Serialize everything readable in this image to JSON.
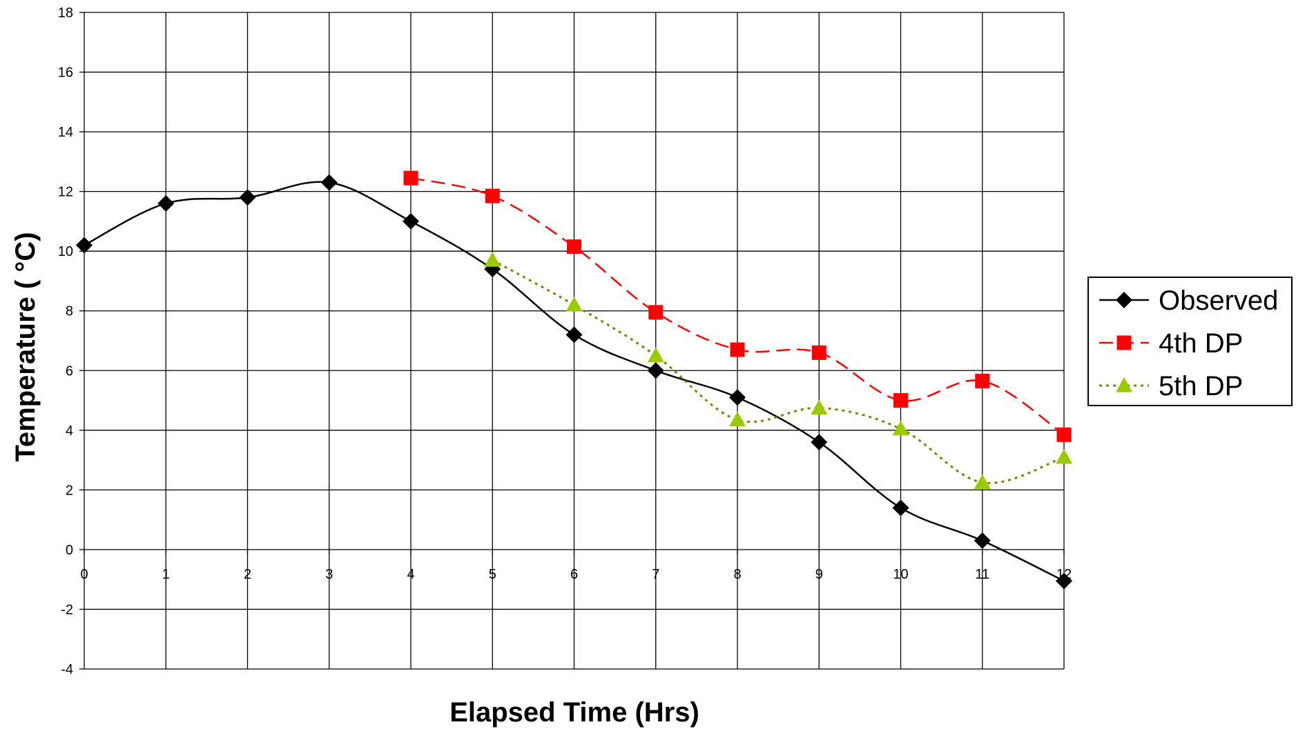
{
  "chart_data": {
    "type": "line",
    "title": "",
    "xlabel": "Elapsed Time (Hrs)",
    "ylabel": "Temperature (  °C)",
    "xlim": [
      0,
      12
    ],
    "ylim": [
      -4,
      18
    ],
    "x_ticks": [
      0,
      1,
      2,
      3,
      4,
      5,
      6,
      7,
      8,
      9,
      10,
      11,
      12
    ],
    "y_ticks": [
      -4,
      -2,
      0,
      2,
      4,
      6,
      8,
      10,
      12,
      14,
      16,
      18
    ],
    "grid": true,
    "legend_position": "right",
    "series": [
      {
        "name": "Observed",
        "color": "#000000",
        "marker": "diamond",
        "line": "solid",
        "x": [
          0,
          1,
          2,
          3,
          4,
          5,
          6,
          7,
          8,
          9,
          10,
          11,
          12
        ],
        "y": [
          10.2,
          11.6,
          11.8,
          12.3,
          11.0,
          9.4,
          7.2,
          6.0,
          5.1,
          3.6,
          1.4,
          0.3,
          -1.05
        ]
      },
      {
        "name": "4th DP",
        "color": "#ff0000",
        "marker": "square",
        "line": "dashed",
        "x": [
          4,
          5,
          6,
          7,
          8,
          9,
          10,
          11,
          12
        ],
        "y": [
          12.45,
          11.85,
          10.15,
          7.95,
          6.7,
          6.6,
          5.0,
          5.65,
          3.85
        ]
      },
      {
        "name": "5th DP",
        "color": "#99cc00",
        "line_color": "#808000",
        "marker": "triangle",
        "line": "dotted",
        "x": [
          5,
          6,
          7,
          8,
          9,
          10,
          11,
          12
        ],
        "y": [
          9.7,
          8.2,
          6.5,
          4.35,
          4.75,
          4.05,
          2.25,
          3.1
        ]
      }
    ]
  }
}
